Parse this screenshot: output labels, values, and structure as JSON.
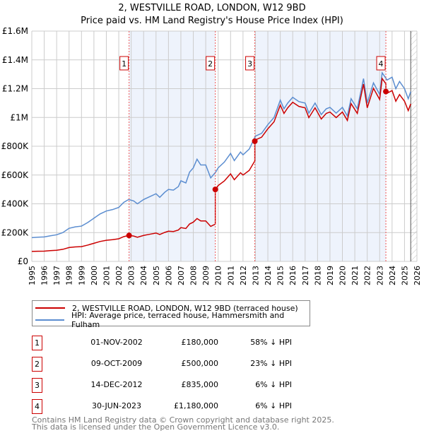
{
  "chart_data": {
    "type": "line",
    "title": "2, WESTVILLE ROAD, LONDON, W12 9BD",
    "subtitle": "Price paid vs. HM Land Registry's House Price Index (HPI)",
    "xlim": [
      1995,
      2026
    ],
    "ylim": [
      0,
      1600000
    ],
    "y_ticks": [
      {
        "v": 0,
        "label": "£0"
      },
      {
        "v": 200000,
        "label": "£200K"
      },
      {
        "v": 400000,
        "label": "£400K"
      },
      {
        "v": 600000,
        "label": "£600K"
      },
      {
        "v": 800000,
        "label": "£800K"
      },
      {
        "v": 1000000,
        "label": "£1M"
      },
      {
        "v": 1200000,
        "label": "£1.2M"
      },
      {
        "v": 1400000,
        "label": "£1.4M"
      },
      {
        "v": 1600000,
        "label": "£1.6M"
      }
    ],
    "x_ticks": [
      "1995",
      "1996",
      "1997",
      "1998",
      "1999",
      "2000",
      "2001",
      "2002",
      "2003",
      "2004",
      "2005",
      "2006",
      "2007",
      "2008",
      "2009",
      "2010",
      "2011",
      "2012",
      "2013",
      "2014",
      "2015",
      "2016",
      "2017",
      "2018",
      "2019",
      "2020",
      "2021",
      "2022",
      "2023",
      "2024",
      "2025",
      "2026"
    ],
    "grid": true,
    "colors": {
      "property": "#cc0000",
      "hpi": "#5b8dd0",
      "shade": "#eef3fc"
    },
    "hpi_series": {
      "x": [
        1995,
        1995.5,
        1996,
        1996.5,
        1997,
        1997.5,
        1998,
        1998.5,
        1999,
        1999.5,
        2000,
        2000.5,
        2001,
        2001.5,
        2002,
        2002.4,
        2002.8,
        2003.2,
        2003.5,
        2004,
        2004.5,
        2005,
        2005.3,
        2005.7,
        2006,
        2006.4,
        2006.8,
        2007,
        2007.4,
        2007.7,
        2008,
        2008.3,
        2008.6,
        2009,
        2009.4,
        2009.8,
        2010,
        2010.5,
        2011,
        2011.3,
        2011.8,
        2012,
        2012.5,
        2013,
        2013.5,
        2014,
        2014.5,
        2015,
        2015.3,
        2015.6,
        2016,
        2016.5,
        2017,
        2017.3,
        2017.8,
        2018.3,
        2018.7,
        2019,
        2019.5,
        2020,
        2020.4,
        2020.7,
        2021.2,
        2021.7,
        2022,
        2022.5,
        2023,
        2023.2,
        2023.6,
        2024,
        2024.3,
        2024.6,
        2025,
        2025.3,
        2025.5
      ],
      "y": [
        165000,
        168000,
        170000,
        178000,
        185000,
        200000,
        230000,
        240000,
        245000,
        270000,
        300000,
        330000,
        350000,
        360000,
        375000,
        410000,
        430000,
        420000,
        400000,
        430000,
        450000,
        470000,
        445000,
        480000,
        500000,
        495000,
        520000,
        560000,
        545000,
        620000,
        650000,
        710000,
        670000,
        670000,
        580000,
        620000,
        650000,
        690000,
        750000,
        700000,
        760000,
        740000,
        780000,
        870000,
        890000,
        950000,
        1000000,
        1120000,
        1060000,
        1100000,
        1140000,
        1110000,
        1100000,
        1030000,
        1100000,
        1020000,
        1060000,
        1070000,
        1030000,
        1070000,
        1010000,
        1130000,
        1060000,
        1270000,
        1100000,
        1240000,
        1160000,
        1310000,
        1260000,
        1280000,
        1200000,
        1250000,
        1200000,
        1130000,
        1180000
      ]
    },
    "series_names": {
      "property": "2, WESTVILLE ROAD, LONDON, W12 9BD (terraced house)",
      "hpi": "HPI: Average price, terraced house, Hammersmith and Fulham"
    },
    "sales": [
      {
        "n": "1",
        "x": 2002.83,
        "y": 180000,
        "date": "01-NOV-2002",
        "price": "£180,000",
        "pct": "58% ↓ HPI"
      },
      {
        "n": "2",
        "x": 2009.77,
        "y": 500000,
        "date": "09-OCT-2009",
        "price": "£500,000",
        "pct": "23% ↓ HPI"
      },
      {
        "n": "3",
        "x": 2012.95,
        "y": 835000,
        "date": "14-DEC-2012",
        "price": "£835,000",
        "pct": "6% ↓ HPI"
      },
      {
        "n": "4",
        "x": 2023.5,
        "y": 1180000,
        "date": "30-JUN-2023",
        "price": "£1,180,000",
        "pct": "6% ↓ HPI"
      }
    ],
    "data_end": 2025.5
  },
  "footer": [
    "Contains HM Land Registry data © Crown copyright and database right 2025.",
    "This data is licensed under the Open Government Licence v3.0."
  ]
}
